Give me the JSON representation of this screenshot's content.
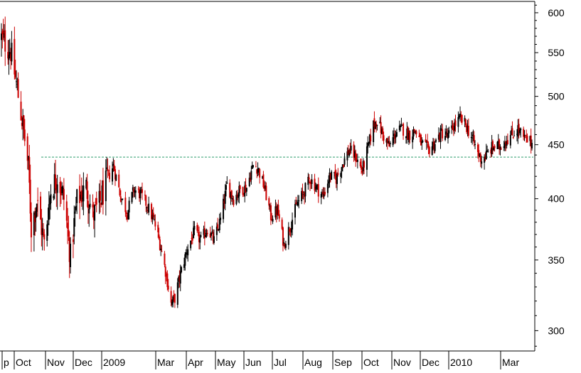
{
  "chart_data": {
    "type": "candlestick",
    "title": "",
    "xlabel": "",
    "ylabel": "",
    "y_scale": "log",
    "ylim": [
      287,
      615
    ],
    "y_ticks": [
      300,
      350,
      400,
      450,
      500,
      550,
      600
    ],
    "x_tick_labels": [
      "p",
      "Oct",
      "Nov",
      "Dec",
      "2009",
      "Mar",
      "Apr",
      "May",
      "Jun",
      "Jul",
      "Aug",
      "Sep",
      "Oct",
      "Nov",
      "Dec",
      "2010",
      "Mar"
    ],
    "x_date_range": [
      "2008-09-08",
      "2010-03-31"
    ],
    "reference_line": {
      "value": 438,
      "style": "dashed",
      "color": "#2e9e6e"
    },
    "up_color": "#000000",
    "down_color": "#cc0000",
    "grid": false,
    "legend": "none",
    "close_anchors": [
      [
        "2008-09-08",
        568
      ],
      [
        "2008-09-18",
        552
      ],
      [
        "2008-09-29",
        482
      ],
      [
        "2008-10-07",
        428
      ],
      [
        "2008-10-10",
        375
      ],
      [
        "2008-10-16",
        398
      ],
      [
        "2008-10-24",
        362
      ],
      [
        "2008-10-31",
        408
      ],
      [
        "2008-11-07",
        420
      ],
      [
        "2008-11-14",
        400
      ],
      [
        "2008-11-21",
        352
      ],
      [
        "2008-11-28",
        398
      ],
      [
        "2008-12-08",
        410
      ],
      [
        "2008-12-15",
        385
      ],
      [
        "2008-12-22",
        395
      ],
      [
        "2008-12-31",
        418
      ],
      [
        "2009-01-06",
        430
      ],
      [
        "2009-01-14",
        402
      ],
      [
        "2009-01-21",
        388
      ],
      [
        "2009-01-28",
        408
      ],
      [
        "2009-02-04",
        404
      ],
      [
        "2009-02-11",
        395
      ],
      [
        "2009-02-19",
        380
      ],
      [
        "2009-02-26",
        360
      ],
      [
        "2009-03-04",
        338
      ],
      [
        "2009-03-09",
        318
      ],
      [
        "2009-03-13",
        322
      ],
      [
        "2009-03-20",
        342
      ],
      [
        "2009-03-27",
        360
      ],
      [
        "2009-04-03",
        372
      ],
      [
        "2009-04-10",
        365
      ],
      [
        "2009-04-17",
        375
      ],
      [
        "2009-04-24",
        365
      ],
      [
        "2009-05-01",
        382
      ],
      [
        "2009-05-08",
        412
      ],
      [
        "2009-05-15",
        400
      ],
      [
        "2009-05-22",
        408
      ],
      [
        "2009-05-29",
        410
      ],
      [
        "2009-06-05",
        430
      ],
      [
        "2009-06-10",
        428
      ],
      [
        "2009-06-17",
        410
      ],
      [
        "2009-06-24",
        385
      ],
      [
        "2009-07-01",
        390
      ],
      [
        "2009-07-08",
        362
      ],
      [
        "2009-07-15",
        378
      ],
      [
        "2009-07-22",
        395
      ],
      [
        "2009-07-29",
        405
      ],
      [
        "2009-08-05",
        418
      ],
      [
        "2009-08-12",
        410
      ],
      [
        "2009-08-19",
        402
      ],
      [
        "2009-08-26",
        420
      ],
      [
        "2009-09-02",
        418
      ],
      [
        "2009-09-09",
        432
      ],
      [
        "2009-09-16",
        445
      ],
      [
        "2009-09-23",
        438
      ],
      [
        "2009-09-30",
        425
      ],
      [
        "2009-10-07",
        450
      ],
      [
        "2009-10-12",
        470
      ],
      [
        "2009-10-16",
        475
      ],
      [
        "2009-10-22",
        460
      ],
      [
        "2009-10-29",
        448
      ],
      [
        "2009-11-05",
        462
      ],
      [
        "2009-11-12",
        466
      ],
      [
        "2009-11-19",
        460
      ],
      [
        "2009-11-26",
        464
      ],
      [
        "2009-12-03",
        450
      ],
      [
        "2009-12-10",
        445
      ],
      [
        "2009-12-17",
        452
      ],
      [
        "2009-12-24",
        462
      ],
      [
        "2009-12-31",
        458
      ],
      [
        "2010-01-07",
        470
      ],
      [
        "2010-01-13",
        476
      ],
      [
        "2010-01-19",
        470
      ],
      [
        "2010-01-25",
        458
      ],
      [
        "2010-02-01",
        442
      ],
      [
        "2010-02-05",
        436
      ],
      [
        "2010-02-10",
        440
      ],
      [
        "2010-02-17",
        448
      ],
      [
        "2010-02-24",
        448
      ],
      [
        "2010-03-03",
        455
      ],
      [
        "2010-03-10",
        460
      ],
      [
        "2010-03-16",
        466
      ],
      [
        "2010-03-22",
        456
      ],
      [
        "2010-03-31",
        452
      ]
    ]
  }
}
